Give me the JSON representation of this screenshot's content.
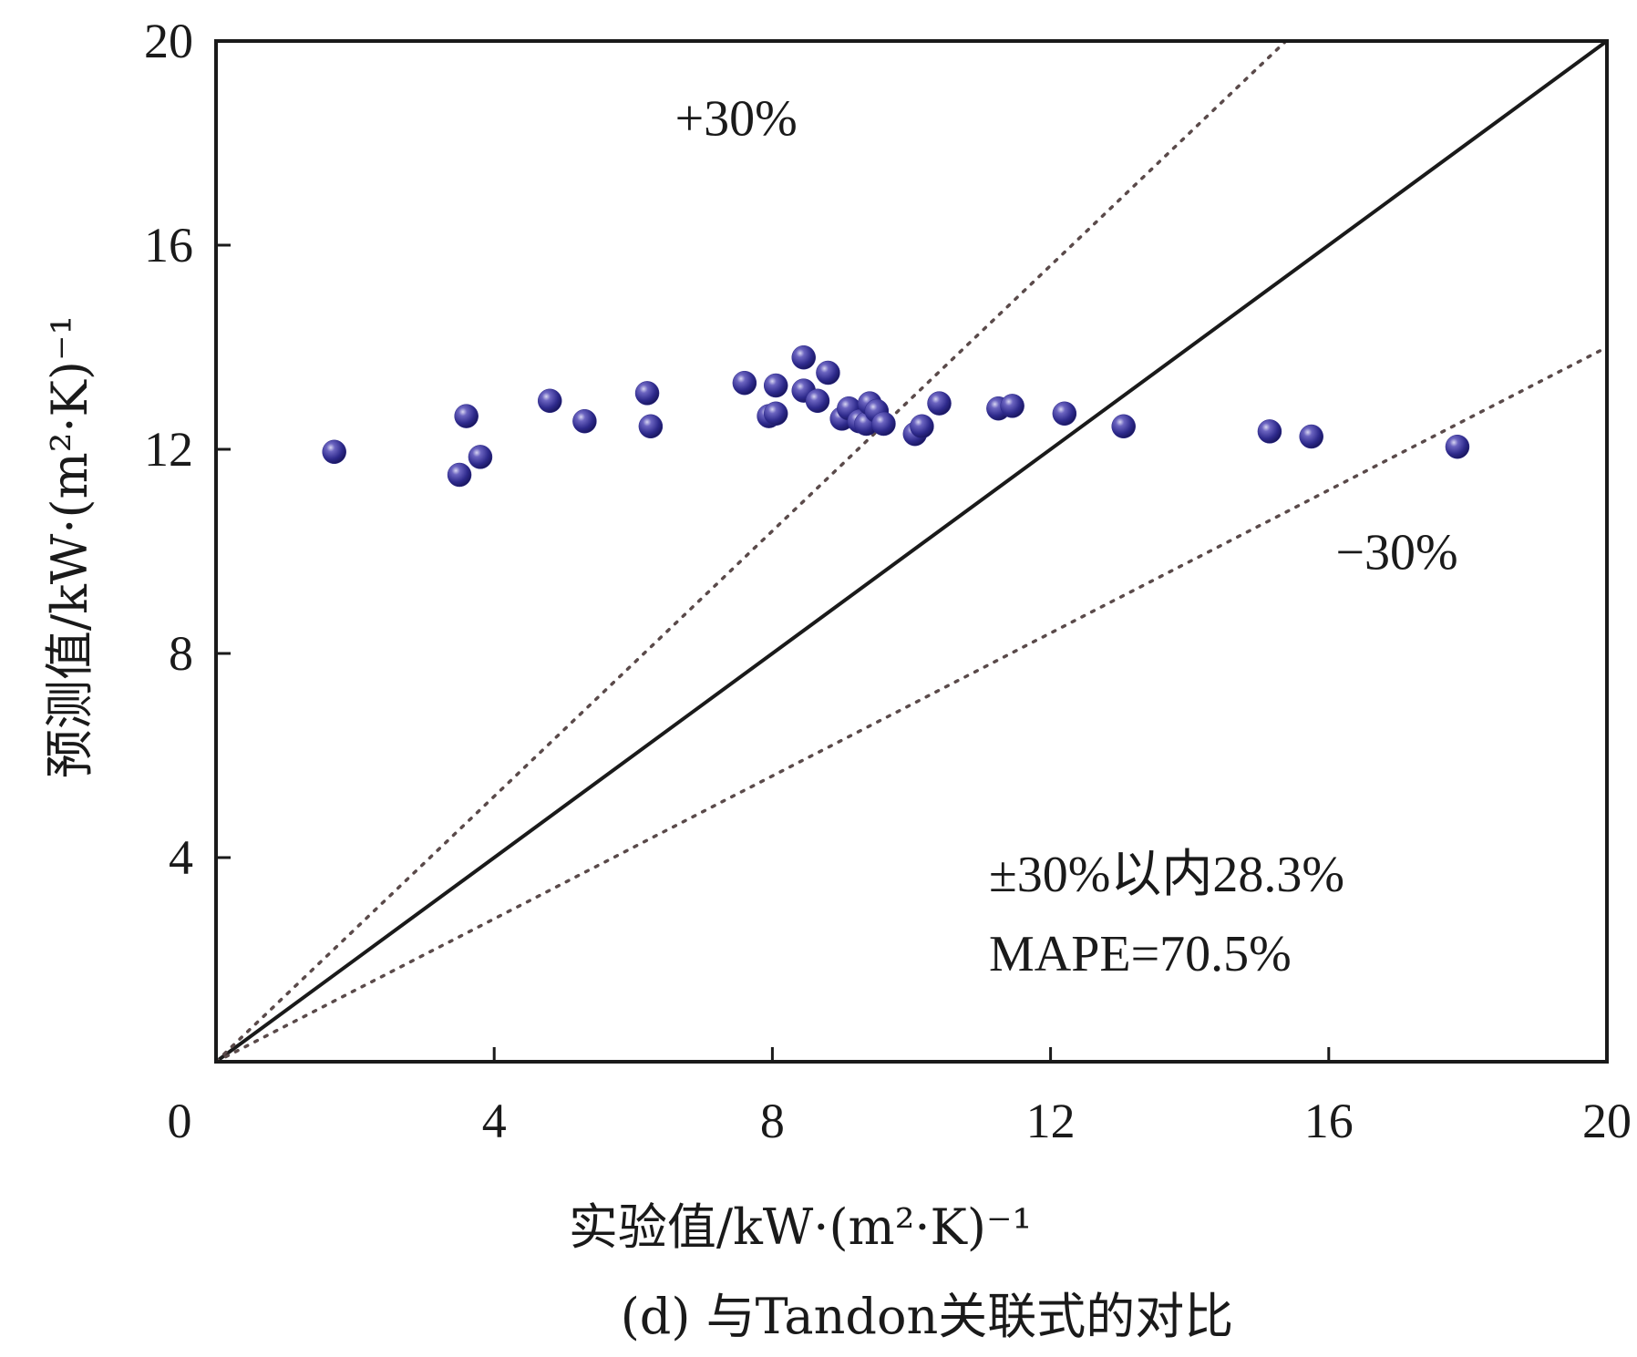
{
  "chart_data": {
    "type": "scatter",
    "xlabel": "实验值/kW·(m²·K)⁻¹",
    "ylabel": "预测值/kW·(m²·K)⁻¹",
    "xlim": [
      0,
      20
    ],
    "ylim": [
      0,
      20
    ],
    "xticks": [
      0,
      4,
      8,
      12,
      16,
      20
    ],
    "yticks": [
      4,
      8,
      12,
      16,
      20
    ],
    "grid": false,
    "reference_lines": [
      {
        "label": "",
        "slope": 1.0,
        "style": "solid"
      },
      {
        "label": "+30%",
        "slope": 1.3,
        "style": "dotted"
      },
      {
        "label": "−30%",
        "slope": 0.7,
        "style": "dotted"
      }
    ],
    "annotations": [
      "±30%以内28.3%",
      "MAPE=70.5%"
    ],
    "caption": "(d) 与Tandon关联式的对比",
    "marker_color": "#2e2a8c",
    "points": [
      {
        "x": 1.7,
        "y": 11.95
      },
      {
        "x": 3.5,
        "y": 11.5
      },
      {
        "x": 3.6,
        "y": 12.65
      },
      {
        "x": 3.8,
        "y": 11.85
      },
      {
        "x": 4.8,
        "y": 12.95
      },
      {
        "x": 5.3,
        "y": 12.55
      },
      {
        "x": 6.2,
        "y": 13.1
      },
      {
        "x": 6.25,
        "y": 12.45
      },
      {
        "x": 7.6,
        "y": 13.3
      },
      {
        "x": 7.95,
        "y": 12.65
      },
      {
        "x": 8.05,
        "y": 13.25
      },
      {
        "x": 8.05,
        "y": 12.7
      },
      {
        "x": 8.45,
        "y": 13.8
      },
      {
        "x": 8.45,
        "y": 13.15
      },
      {
        "x": 8.65,
        "y": 12.95
      },
      {
        "x": 8.8,
        "y": 13.5
      },
      {
        "x": 9.0,
        "y": 12.6
      },
      {
        "x": 9.1,
        "y": 12.8
      },
      {
        "x": 9.25,
        "y": 12.55
      },
      {
        "x": 9.35,
        "y": 12.5
      },
      {
        "x": 9.4,
        "y": 12.9
      },
      {
        "x": 9.5,
        "y": 12.75
      },
      {
        "x": 9.6,
        "y": 12.5
      },
      {
        "x": 10.05,
        "y": 12.3
      },
      {
        "x": 10.15,
        "y": 12.45
      },
      {
        "x": 10.4,
        "y": 12.9
      },
      {
        "x": 11.25,
        "y": 12.8
      },
      {
        "x": 11.45,
        "y": 12.85
      },
      {
        "x": 12.2,
        "y": 12.7
      },
      {
        "x": 13.05,
        "y": 12.45
      },
      {
        "x": 15.15,
        "y": 12.35
      },
      {
        "x": 15.75,
        "y": 12.25
      },
      {
        "x": 17.85,
        "y": 12.05
      }
    ]
  }
}
